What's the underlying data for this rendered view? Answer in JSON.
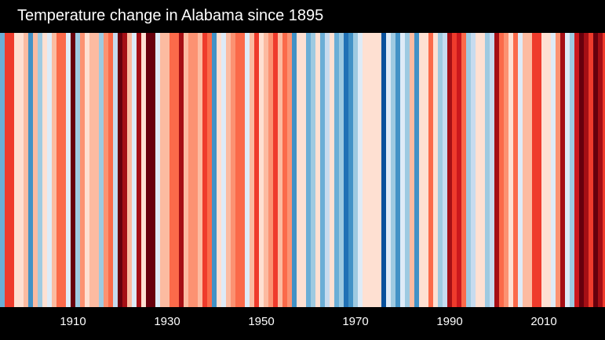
{
  "chart_data": {
    "type": "heatmap",
    "title": "Temperature change in Alabama since 1895",
    "x_start_year": 1895,
    "x_end_year": 2023,
    "x_ticks": [
      "1910",
      "1930",
      "1950",
      "1970",
      "1990",
      "2010"
    ],
    "palette": {
      "B1": "#08519c",
      "B2": "#2171b5",
      "B3": "#4292c6",
      "B4": "#6baed6",
      "B5": "#9ecae1",
      "B6": "#c6dbef",
      "B7": "#deebf7",
      "R7": "#fee0d2",
      "R6": "#fcbba1",
      "R5": "#fc9272",
      "R4": "#fb6a4a",
      "R3": "#ef3b2c",
      "R2": "#cb181d",
      "R1": "#a50f15",
      "R0": "#67000d"
    },
    "stripe_colors": [
      "B4",
      "R3",
      "R3",
      "R7",
      "R7",
      "R6",
      "B3",
      "R6",
      "B5",
      "R7",
      "B7",
      "R6",
      "R4",
      "R4",
      "B7",
      "R0",
      "B5",
      "R5",
      "R7",
      "R6",
      "R6",
      "B5",
      "R5",
      "R4",
      "B6",
      "R0",
      "R1",
      "R6",
      "B7",
      "R1",
      "R7",
      "R0",
      "R0",
      "B7",
      "R6",
      "R6",
      "R4",
      "R4",
      "R1",
      "R6",
      "R5",
      "R5",
      "R6",
      "R3",
      "R4",
      "B3",
      "R7",
      "B7",
      "R6",
      "R5",
      "R4",
      "R4",
      "B7",
      "R6",
      "R3",
      "R7",
      "R6",
      "R5",
      "R3",
      "R6",
      "R4",
      "R5",
      "B3",
      "R7",
      "R7",
      "B4",
      "B5",
      "R7",
      "B4",
      "B6",
      "R7",
      "B4",
      "B5",
      "B2",
      "B3",
      "B5",
      "B7",
      "R7",
      "R7",
      "R7",
      "R7",
      "B1",
      "B7",
      "B5",
      "B3",
      "B7",
      "B5",
      "R6",
      "B3",
      "R7",
      "R7",
      "R4",
      "R7",
      "B5",
      "B6",
      "R1",
      "R3",
      "R2",
      "R4",
      "B5",
      "B6",
      "R7",
      "R7",
      "B5",
      "B6",
      "R1",
      "R4",
      "R5",
      "R7",
      "R4",
      "B7",
      "R6",
      "R6",
      "R3",
      "R3",
      "R7",
      "R7",
      "B7",
      "R5",
      "R1",
      "B7",
      "B5",
      "R2",
      "R0",
      "R1",
      "R3",
      "R0",
      "R1",
      "R3"
    ]
  }
}
